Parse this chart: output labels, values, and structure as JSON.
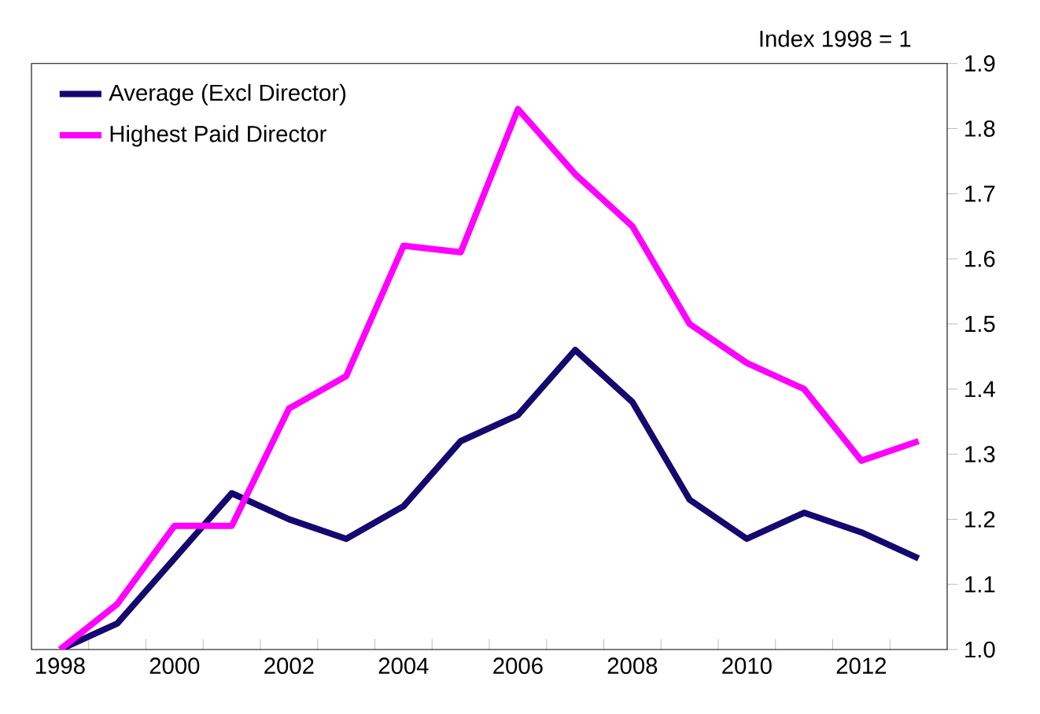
{
  "chart_data": {
    "type": "line",
    "ylabel": "Index 1998 = 1",
    "categories": [
      "1998",
      null,
      "2000",
      null,
      "2002",
      null,
      "2004",
      null,
      "2006",
      null,
      "2008",
      null,
      "2010",
      null,
      "2012",
      null
    ],
    "series": [
      {
        "name": "Average (Excl Director)",
        "color": "#14096f",
        "values": [
          1.0,
          1.04,
          1.14,
          1.24,
          1.2,
          1.17,
          1.22,
          1.32,
          1.36,
          1.46,
          1.38,
          1.23,
          1.17,
          1.21,
          1.18,
          1.14
        ]
      },
      {
        "name": "Highest Paid Director",
        "color": "#ff00ff",
        "values": [
          1.0,
          1.07,
          1.19,
          1.19,
          1.37,
          1.42,
          1.62,
          1.61,
          1.83,
          1.73,
          1.65,
          1.5,
          1.44,
          1.4,
          1.29,
          1.32
        ]
      }
    ],
    "ylim": [
      1.0,
      1.9
    ],
    "yticks": [
      {
        "value": 1.0,
        "label": "1.0"
      },
      1.1,
      1.2,
      1.3,
      1.4,
      1.5,
      1.6,
      1.7,
      1.8,
      1.9
    ],
    "legend": "top left",
    "grid": false,
    "marker": "none",
    "line_style": "solid"
  }
}
